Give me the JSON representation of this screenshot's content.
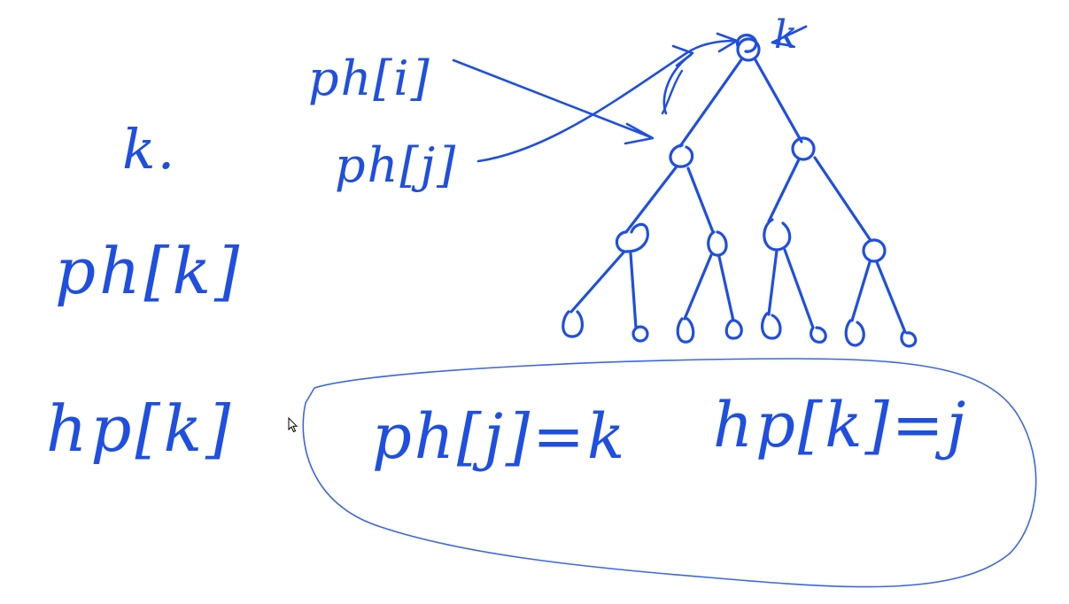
{
  "labels": {
    "k": "k.",
    "ph_k": "ph[k]",
    "hp_k": "hp[k]",
    "ph_i": "ph[i]",
    "ph_j": "ph[j]",
    "eq_ph_j": "ph[j]=k",
    "eq_hp_k": "hp[k]=j",
    "root_mark": "k"
  },
  "colors": {
    "ink": "#1f4fe0",
    "ink_light": "#3a66e6",
    "background": "#ffffff"
  },
  "icons": {
    "cursor": "mouse-pointer-icon"
  }
}
